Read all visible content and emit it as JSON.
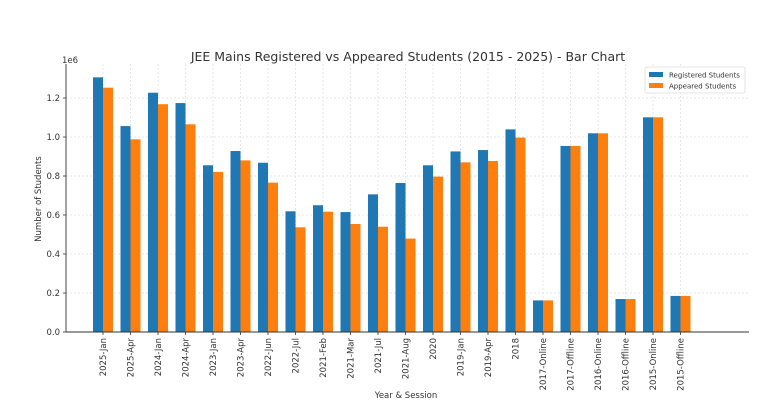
{
  "chart_data": {
    "type": "bar",
    "title": "JEE Mains Registered vs Appeared Students (2015 - 2025) - Bar Chart",
    "xlabel": "Year & Session",
    "ylabel": "Number of Students",
    "y_offset_label": "1e6",
    "ylim": [
      0,
      1.36
    ],
    "yticks": [
      "0.0",
      "0.2",
      "0.4",
      "0.6",
      "0.8",
      "1.0",
      "1.2"
    ],
    "grid": true,
    "legend_position": "top-right",
    "categories": [
      "2025-Jan",
      "2025-Apr",
      "2024-Jan",
      "2024-Apr",
      "2023-Jan",
      "2023-Apr",
      "2022-Jun",
      "2022-Jul",
      "2021-Feb",
      "2021-Mar",
      "2021-Jul",
      "2021-Aug",
      "2020",
      "2019-Jan",
      "2019-Apr",
      "2018",
      "2017-Online",
      "2017-Offline",
      "2016-Online",
      "2016-Offline",
      "2015-Online",
      "2015-Offline"
    ],
    "series": [
      {
        "name": "Registered Students",
        "color": "#1f77b4",
        "values": [
          1.306,
          1.056,
          1.227,
          1.174,
          0.855,
          0.928,
          0.868,
          0.619,
          0.65,
          0.615,
          0.706,
          0.764,
          0.855,
          0.926,
          0.933,
          1.039,
          0.162,
          0.954,
          1.019,
          0.169,
          1.101,
          0.185
        ]
      },
      {
        "name": "Appeared Students",
        "color": "#ff7f0e",
        "values": [
          1.253,
          0.988,
          1.168,
          1.065,
          0.821,
          0.88,
          0.766,
          0.537,
          0.617,
          0.554,
          0.54,
          0.479,
          0.797,
          0.87,
          0.877,
          0.997,
          0.162,
          0.954,
          1.019,
          0.169,
          1.101,
          0.185
        ]
      }
    ]
  }
}
